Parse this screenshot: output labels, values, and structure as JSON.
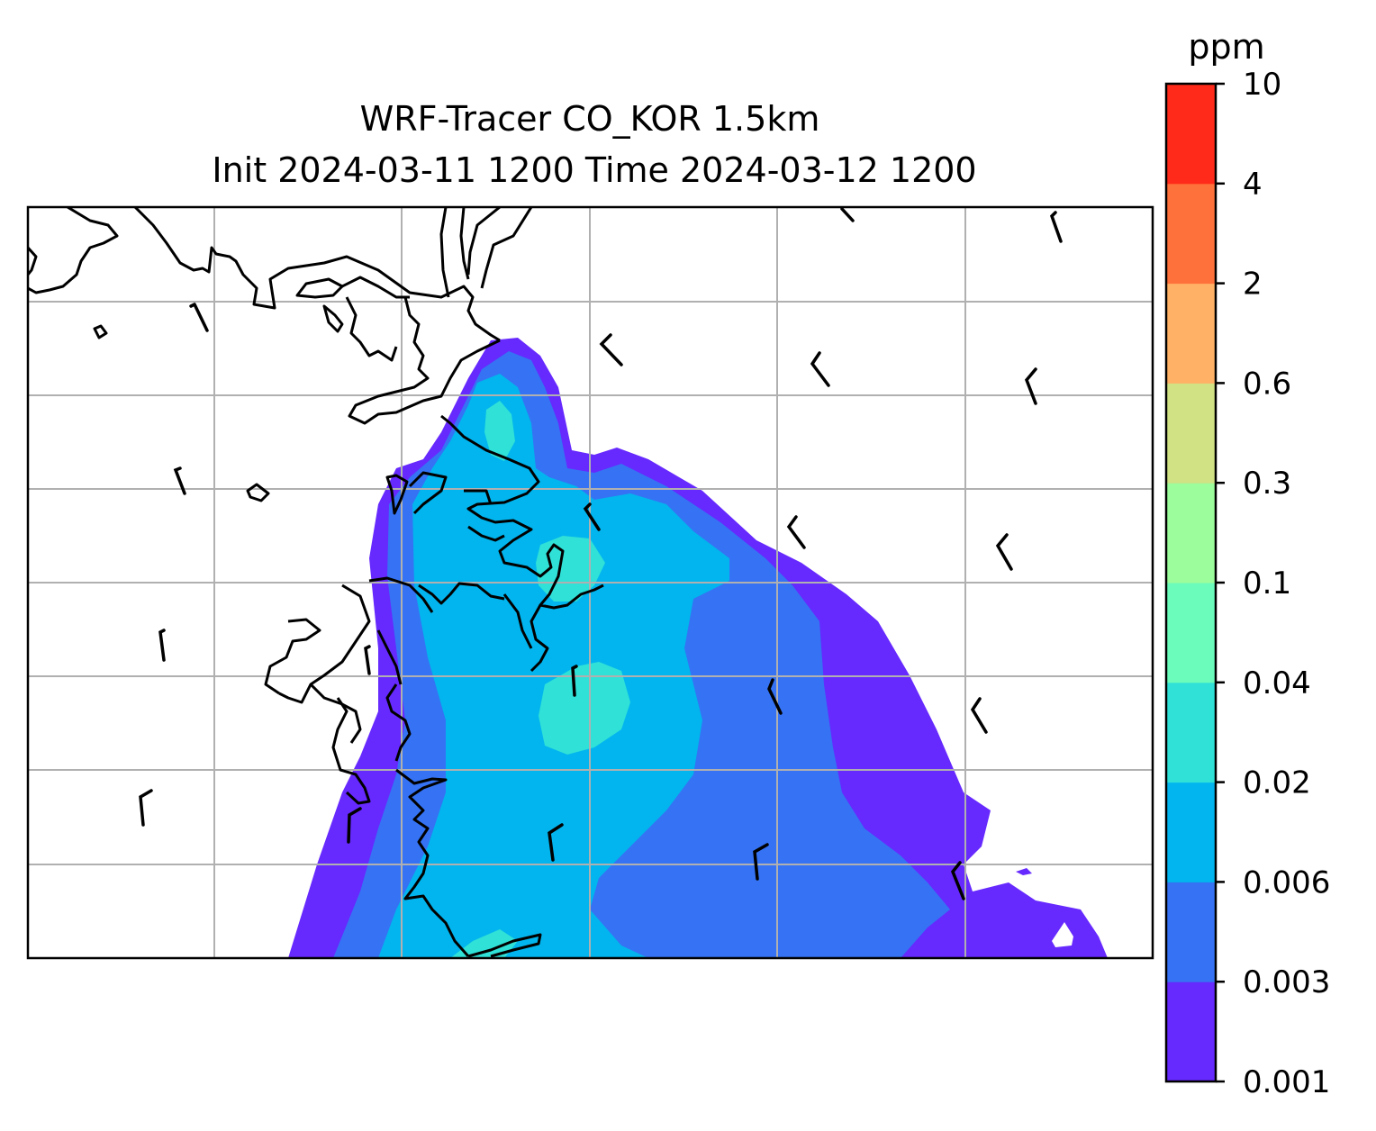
{
  "title": {
    "line1": "WRF-Tracer CO_KOR 1.5km",
    "line2": "Init 2024-03-11 1200 Time 2024-03-12 1200"
  },
  "colorbar": {
    "unit": "ppm",
    "levels": [
      "0.001",
      "0.003",
      "0.006",
      "0.02",
      "0.04",
      "0.1",
      "0.3",
      "0.6",
      "2",
      "4",
      "10"
    ],
    "colors": [
      "#6629fe",
      "#3573f4",
      "#02b5ee",
      "#30e1d7",
      "#6bfcbc",
      "#9cfd9c",
      "#d0e284",
      "#ffb166",
      "#ff713a",
      "#ff2a1a"
    ]
  },
  "map": {
    "gridlines": true,
    "coastline_color": "#000000",
    "grid_color": "#b0b0b0",
    "wind_barbs": true
  }
}
